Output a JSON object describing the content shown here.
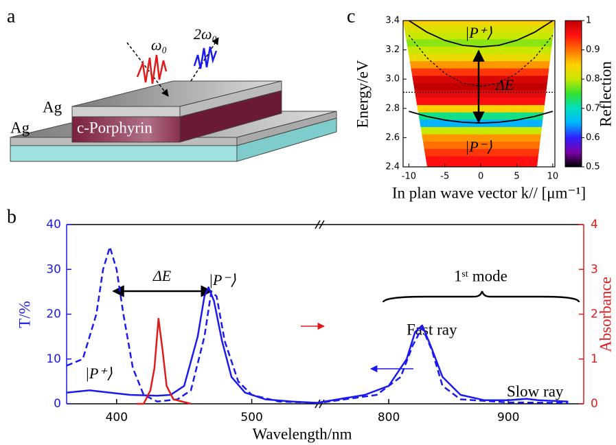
{
  "diagram": {
    "label": "a",
    "texts": {
      "omega": "ω₀",
      "two_omega": "2ω₀",
      "ag_top": "Ag",
      "ag_bottom": "Ag",
      "material": "c-Porphyrin"
    }
  },
  "chart_data": [
    {
      "type": "line",
      "panel_label": "b",
      "xlabel": "Wavelength/nm",
      "ylabel": "T/%",
      "y2label": "Absorbance",
      "xlim": [
        363,
        963
      ],
      "xbreak": [
        550,
        742
      ],
      "xticks": [
        400,
        500,
        800,
        900
      ],
      "ylim": [
        0,
        40
      ],
      "yticks": [
        0,
        10,
        20,
        30,
        40
      ],
      "y2lim": [
        0,
        4
      ],
      "y2ticks": [
        0,
        1,
        2,
        3,
        4
      ],
      "axis_colors": {
        "y": "#1a1aee",
        "y2": "#e01a1a"
      },
      "series": [
        {
          "color": "#1a1aee",
          "dash": false,
          "x": [
            363,
            380,
            395,
            410,
            430,
            440,
            450,
            460,
            465,
            468,
            472,
            478,
            485,
            495,
            510,
            530,
            550,
            742,
            780,
            800,
            815,
            822,
            828,
            835,
            845,
            860,
            880,
            900,
            915,
            925,
            950
          ],
          "values": [
            2.5,
            3,
            2.5,
            2,
            1.8,
            2,
            4,
            15,
            24,
            26,
            23,
            14,
            6,
            2.5,
            1,
            0.5,
            0.2,
            0.3,
            2,
            4,
            10,
            16,
            17.5,
            13,
            6,
            2,
            0.8,
            0.8,
            1.1,
            0.8,
            0.5
          ]
        },
        {
          "color": "#1a1aee",
          "dash": true,
          "x": [
            363,
            375,
            385,
            390,
            395,
            400,
            405,
            412,
            420,
            430,
            445,
            455,
            465,
            470,
            474,
            480,
            490,
            500,
            520,
            550,
            742,
            790,
            810,
            820,
            828,
            836,
            845,
            860,
            900,
            950
          ],
          "values": [
            8.5,
            10,
            20,
            30,
            35,
            30,
            20,
            8,
            2,
            0.5,
            1,
            3,
            15,
            25,
            24,
            14,
            5,
            2,
            0.5,
            0.2,
            0.2,
            2,
            6,
            13,
            17,
            12,
            4,
            1,
            0.3,
            0.2
          ]
        },
        {
          "color": "#e01a1a",
          "dash": false,
          "axis": "y2",
          "x": [
            415,
            420,
            425,
            428,
            431,
            434,
            437,
            442,
            455
          ],
          "values": [
            0,
            0,
            0.3,
            0.8,
            1.9,
            1.2,
            0.4,
            0.1,
            0
          ]
        }
      ],
      "annotations": {
        "delta_e": "ΔE",
        "p_minus": "|P⁻⟩",
        "p_plus": "|P⁺⟩",
        "mode": "1ˢᵗ mode",
        "fast": "Fast ray",
        "slow": "Slow ray"
      }
    },
    {
      "type": "heatmap",
      "panel_label": "c",
      "xlabel": "In plan wave vector k// [μm⁻¹]",
      "ylabel": "Energy/eV",
      "colorbar_label": "Reflection",
      "xlim": [
        -10.8,
        10.3
      ],
      "xticks": [
        -10,
        -5,
        0,
        5,
        10
      ],
      "ylim": [
        2.4,
        3.4
      ],
      "yticks": [
        2.4,
        2.6,
        2.8,
        {
          "value": 3,
          "label": "3.0"
        },
        3.2,
        3.4
      ],
      "clim": [
        0.5,
        1
      ],
      "cticks": [
        0.5,
        0.6,
        0.7,
        0.8,
        0.9,
        1
      ],
      "colormap": [
        "#000000",
        "#7a00a8",
        "#3020ff",
        "#00b4ff",
        "#00e0c0",
        "#30e030",
        "#c8e800",
        "#ffd000",
        "#ff7000",
        "#ff1010",
        "#c00000"
      ],
      "profile": {
        "y": [
          2.4,
          2.45,
          2.5,
          2.55,
          2.6,
          2.65,
          2.7,
          2.75,
          2.8,
          2.85,
          2.9,
          2.95,
          3,
          3.05,
          3.1,
          3.15,
          3.2,
          3.25,
          3.3,
          3.35,
          3.4
        ],
        "values": [
          0.95,
          0.95,
          0.93,
          0.9,
          0.88,
          0.8,
          0.65,
          0.72,
          0.85,
          0.95,
          0.97,
          1,
          0.98,
          0.93,
          0.88,
          0.83,
          0.8,
          0.78,
          0.8,
          0.82,
          0.85
        ]
      },
      "series": [
        {
          "color": "#000000",
          "style": "solid",
          "x": [
            -10,
            -7.5,
            -5,
            -2.5,
            0,
            2.5,
            5,
            7.5,
            10
          ],
          "values": [
            3.4,
            3.321,
            3.265,
            3.231,
            3.22,
            3.231,
            3.265,
            3.321,
            3.4
          ]
        },
        {
          "color": "#000000",
          "style": "solid",
          "x": [
            -10,
            -7.5,
            -5,
            -2.5,
            0,
            2.5,
            5,
            7.5,
            10
          ],
          "values": [
            2.78,
            2.745,
            2.72,
            2.705,
            2.7,
            2.705,
            2.72,
            2.745,
            2.78
          ]
        },
        {
          "color": "#000000",
          "style": "dashed",
          "x": [
            -10,
            -7.5,
            -5,
            -2.5,
            0,
            2.5,
            5,
            7.5,
            10
          ],
          "values": [
            3.3,
            3.147,
            3.04,
            2.972,
            2.95,
            2.972,
            3.04,
            3.147,
            3.3
          ]
        },
        {
          "color": "#000000",
          "style": "dotted",
          "x": [
            -10.8,
            10.3
          ],
          "values": [
            2.91,
            2.91
          ]
        }
      ],
      "annotations": {
        "p_plus": "|P⁺⟩",
        "delta_e": "ΔE",
        "p_minus": "|P⁻⟩"
      }
    }
  ]
}
